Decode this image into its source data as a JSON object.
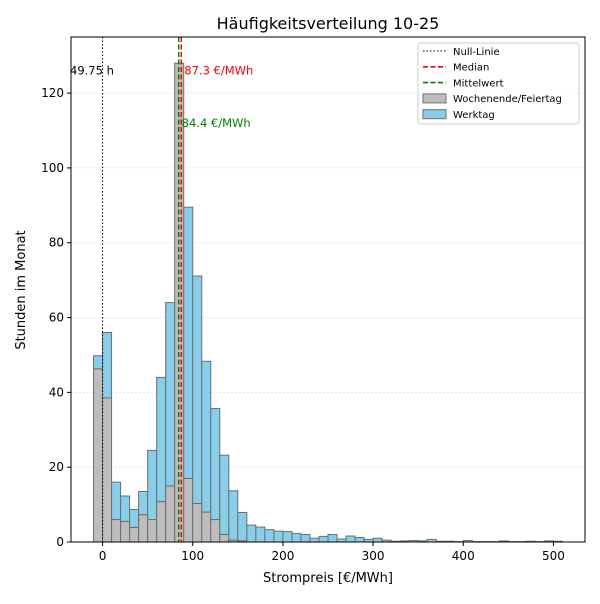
{
  "chart_data": {
    "type": "bar",
    "title": "Häufigkeitsverteilung 10-25",
    "xlabel": "Strompreis [€/MWh]",
    "ylabel": "Stunden im Monat",
    "xlim": [
      -35,
      535
    ],
    "ylim": [
      0,
      135
    ],
    "bin_width": 10,
    "x_ticks": [
      0,
      100,
      200,
      300,
      400,
      500
    ],
    "y_ticks": [
      0,
      20,
      40,
      60,
      80,
      100,
      120
    ],
    "grid": "y-dotted",
    "legend_position": "top-right",
    "stacked": true,
    "bin_starts": [
      -10,
      0,
      10,
      20,
      30,
      40,
      50,
      60,
      70,
      80,
      90,
      100,
      110,
      120,
      130,
      140,
      150,
      160,
      170,
      180,
      190,
      200,
      210,
      220,
      230,
      240,
      250,
      260,
      270,
      280,
      290,
      300,
      310,
      320,
      330,
      340,
      350,
      360,
      370,
      380,
      390,
      400,
      410,
      420,
      430,
      440,
      450,
      460,
      470,
      480,
      490,
      500
    ],
    "series": [
      {
        "name": "Wochenende/Feiertag",
        "color": "#bdbdbd",
        "values": [
          46.3,
          38.5,
          6.0,
          5.5,
          3.9,
          7.3,
          6.0,
          10.8,
          15.0,
          128.0,
          17.0,
          10.3,
          8.0,
          6.0,
          2.0,
          0.5,
          0.3,
          0,
          0,
          0,
          0,
          0,
          0,
          0,
          0,
          0,
          0,
          0,
          0,
          0,
          0,
          0,
          0,
          0,
          0,
          0,
          0,
          0,
          0,
          0,
          0,
          0,
          0,
          0,
          0,
          0,
          0,
          0,
          0,
          0,
          0,
          0
        ]
      },
      {
        "name": "Werktag",
        "color": "#87ceeb",
        "values": [
          3.5,
          17.5,
          10.0,
          6.8,
          4.8,
          6.2,
          18.5,
          33.2,
          49.0,
          0,
          72.5,
          60.8,
          40.3,
          29.7,
          21.2,
          13.2,
          7.6,
          4.5,
          4.0,
          3.3,
          2.9,
          2.8,
          2.3,
          2.0,
          1.0,
          1.5,
          2.0,
          0.8,
          1.6,
          1.2,
          0.7,
          1.0,
          0.5,
          0.2,
          0.3,
          0.4,
          0.3,
          0.7,
          0.2,
          0.2,
          0.1,
          0.4,
          0.1,
          0.1,
          0.1,
          0.3,
          0.1,
          0.1,
          0.2,
          0.1,
          0.3,
          0.2
        ]
      }
    ],
    "reference_lines": [
      {
        "name": "Null-Linie",
        "x": 0,
        "color": "#000000",
        "style": "dotted",
        "annotation": "49.75 h",
        "annotation_color": "#000000",
        "annotation_y": 126,
        "annotation_side": "left"
      },
      {
        "name": "Median",
        "x": 87.3,
        "color": "#ff0000",
        "style": "dashed",
        "annotation": "87.3 €/MWh",
        "annotation_color": "#ff0000",
        "annotation_y": 126,
        "annotation_side": "right"
      },
      {
        "name": "Mittelwert",
        "x": 84.4,
        "color": "#008000",
        "style": "dashed",
        "annotation": "84.4 €/MWh",
        "annotation_color": "#008000",
        "annotation_y": 112,
        "annotation_side": "right"
      }
    ],
    "legend": [
      {
        "label": "Null-Linie",
        "kind": "line",
        "color": "#000000",
        "style": "dotted"
      },
      {
        "label": "Median",
        "kind": "line",
        "color": "#ff0000",
        "style": "dashed"
      },
      {
        "label": "Mittelwert",
        "kind": "line",
        "color": "#008000",
        "style": "dashed"
      },
      {
        "label": "Wochenende/Feiertag",
        "kind": "patch",
        "color": "#bdbdbd"
      },
      {
        "label": "Werktag",
        "kind": "patch",
        "color": "#87ceeb"
      }
    ]
  }
}
